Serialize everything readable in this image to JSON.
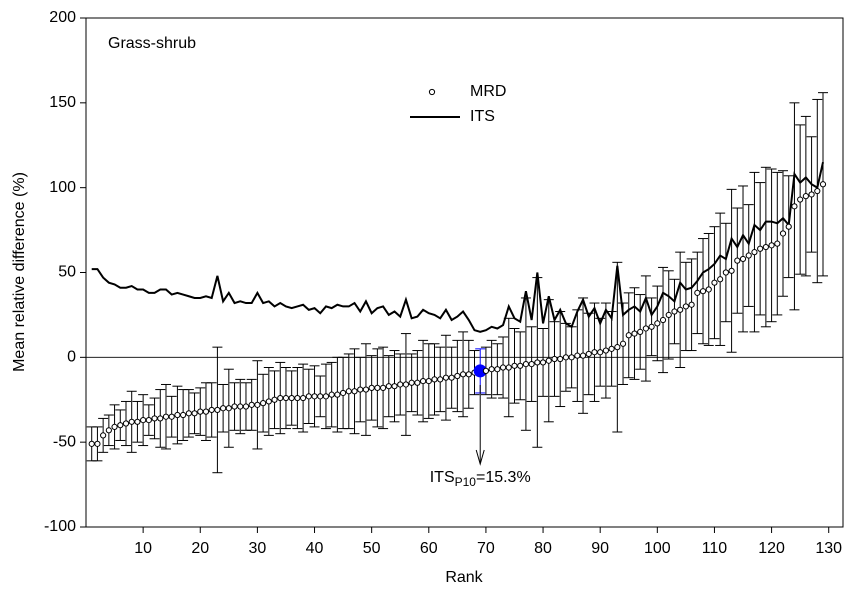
{
  "chart_data": {
    "type": "errorbar-line",
    "panel_label": "Grass-shrub",
    "xlabel": "Rank",
    "ylabel": "Mean relative difference (%)",
    "xlim": [
      0,
      132.5
    ],
    "ylim": [
      -100,
      200
    ],
    "xticks": [
      10,
      20,
      30,
      40,
      50,
      60,
      70,
      80,
      90,
      100,
      110,
      120,
      130
    ],
    "yticks": [
      -100,
      -50,
      0,
      50,
      100,
      150,
      200
    ],
    "reference_line": 0,
    "legend": "top-center",
    "highlight_rank": 69,
    "highlight_color": "#0000ff",
    "annotation": {
      "text": "ITS",
      "sub": "P10",
      "rest": "=15.3%"
    },
    "x": [
      1,
      2,
      3,
      4,
      5,
      6,
      7,
      8,
      9,
      10,
      11,
      12,
      13,
      14,
      15,
      16,
      17,
      18,
      19,
      20,
      21,
      22,
      23,
      24,
      25,
      26,
      27,
      28,
      29,
      30,
      31,
      32,
      33,
      34,
      35,
      36,
      37,
      38,
      39,
      40,
      41,
      42,
      43,
      44,
      45,
      46,
      47,
      48,
      49,
      50,
      51,
      52,
      53,
      54,
      55,
      56,
      57,
      58,
      59,
      60,
      61,
      62,
      63,
      64,
      65,
      66,
      67,
      68,
      69,
      70,
      71,
      72,
      73,
      74,
      75,
      76,
      77,
      78,
      79,
      80,
      81,
      82,
      83,
      84,
      85,
      86,
      87,
      88,
      89,
      90,
      91,
      92,
      93,
      94,
      95,
      96,
      97,
      98,
      99,
      100,
      101,
      102,
      103,
      104,
      105,
      106,
      107,
      108,
      109,
      110,
      111,
      112,
      113,
      114,
      115,
      116,
      117,
      118,
      119,
      120,
      121,
      122,
      123,
      124,
      125,
      126,
      127,
      128,
      129
    ],
    "series": [
      {
        "name": "MRD",
        "color": "#000000",
        "values": [
          -51,
          -51,
          -46,
          -43,
          -41,
          -40,
          -39,
          -38,
          -38,
          -37,
          -37,
          -36,
          -36,
          -35,
          -35,
          -34,
          -34,
          -33,
          -33,
          -32,
          -32,
          -31,
          -31,
          -30,
          -30,
          -29,
          -29,
          -29,
          -28,
          -28,
          -27,
          -26,
          -25,
          -24,
          -24,
          -24,
          -24,
          -24,
          -23,
          -23,
          -23,
          -23,
          -22,
          -22,
          -21,
          -20,
          -20,
          -19,
          -19,
          -18,
          -18,
          -18,
          -17,
          -17,
          -16,
          -16,
          -15,
          -15,
          -14,
          -14,
          -13,
          -13,
          -12,
          -12,
          -11,
          -10,
          -10,
          -9,
          -8,
          -8,
          -7,
          -7,
          -6,
          -6,
          -5,
          -5,
          -4,
          -4,
          -3,
          -3,
          -2,
          -1,
          -1,
          0,
          0,
          1,
          1,
          2,
          3,
          3,
          4,
          5,
          6,
          8,
          13,
          14,
          15,
          17,
          18,
          20,
          22,
          25,
          27,
          28,
          30,
          31,
          38,
          39,
          40,
          44,
          46,
          50,
          51,
          57,
          58,
          60,
          62,
          64,
          65,
          66,
          67,
          73,
          77,
          89,
          93,
          95,
          96,
          98,
          102
        ],
        "errors": [
          10,
          10,
          10,
          9,
          13,
          9,
          13,
          18,
          12,
          15,
          9,
          12,
          17,
          19,
          12,
          17,
          15,
          14,
          12,
          14,
          17,
          16,
          37,
          14,
          23,
          14,
          16,
          14,
          15,
          26,
          17,
          20,
          17,
          21,
          18,
          16,
          18,
          20,
          16,
          18,
          12,
          19,
          19,
          22,
          21,
          22,
          25,
          19,
          27,
          19,
          23,
          24,
          18,
          21,
          18,
          30,
          17,
          19,
          24,
          22,
          21,
          19,
          25,
          18,
          21,
          25,
          20,
          13,
          13,
          14,
          17,
          15,
          18,
          29,
          22,
          20,
          39,
          22,
          50,
          20,
          36,
          22,
          28,
          20,
          18,
          27,
          34,
          24,
          29,
          20,
          28,
          22,
          50,
          24,
          25,
          27,
          22,
          31,
          17,
          22,
          31,
          26,
          19,
          34,
          26,
          27,
          24,
          31,
          33,
          33,
          39,
          29,
          48,
          31,
          43,
          30,
          47,
          39,
          47,
          45,
          42,
          37,
          30,
          61,
          44,
          47,
          34,
          54,
          54
        ]
      },
      {
        "name": "ITS",
        "color": "#000000",
        "values": [
          52,
          52,
          47,
          44,
          43,
          41,
          41,
          42,
          40,
          40,
          38,
          38,
          40,
          40,
          37,
          38,
          37,
          36,
          35,
          35,
          36,
          35,
          48,
          33,
          38,
          32,
          33,
          32,
          32,
          38,
          32,
          33,
          30,
          32,
          30,
          29,
          30,
          31,
          28,
          29,
          26,
          30,
          29,
          31,
          30,
          30,
          32,
          27,
          33,
          26,
          29,
          30,
          25,
          27,
          24,
          34,
          23,
          24,
          28,
          26,
          25,
          23,
          28,
          22,
          24,
          27,
          22,
          16,
          15,
          16,
          18,
          17,
          19,
          30,
          23,
          21,
          39,
          22,
          50,
          20,
          36,
          22,
          28,
          20,
          18,
          27,
          34,
          24,
          29,
          20,
          28,
          23,
          54,
          25,
          28,
          30,
          27,
          35,
          25,
          30,
          38,
          36,
          33,
          44,
          40,
          41,
          45,
          50,
          52,
          55,
          60,
          58,
          70,
          65,
          72,
          67,
          78,
          75,
          80,
          80,
          79,
          82,
          78,
          108,
          103,
          106,
          102,
          100,
          115
        ]
      }
    ]
  }
}
